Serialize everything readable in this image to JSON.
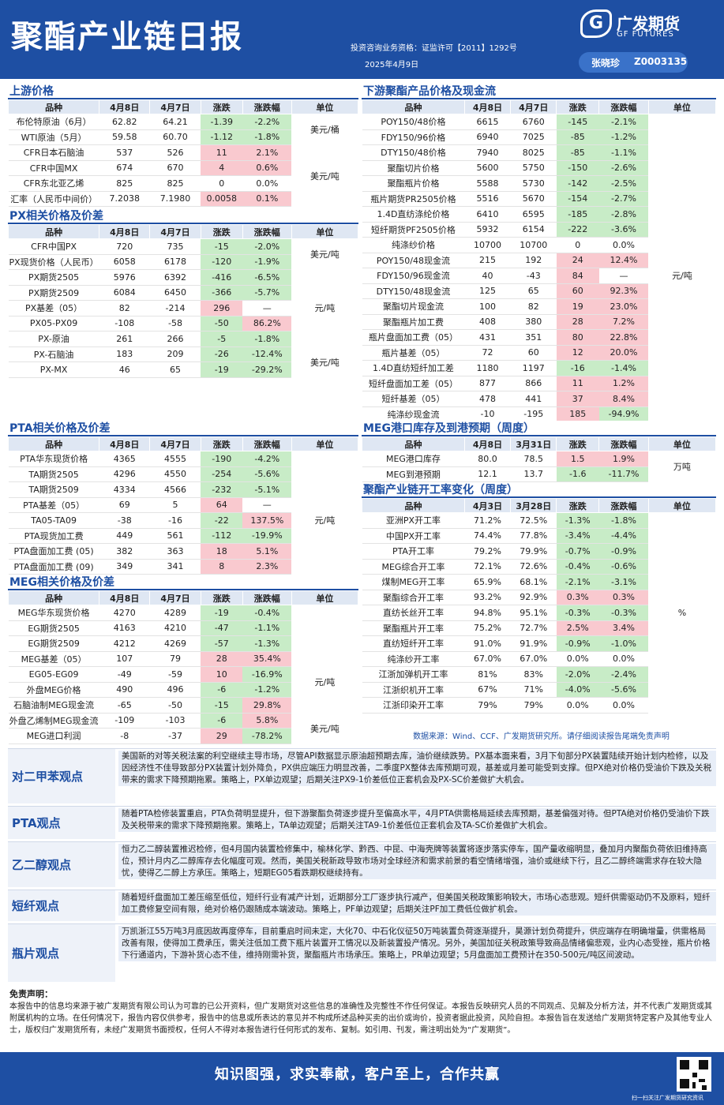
{
  "header": {
    "title": "聚酯产业链日报",
    "qualification": "投资咨询业务资格：证监许可【2011】1292号",
    "date": "2025年4月9日",
    "logo_cn": "广发期货",
    "logo_en": "GF FUTURES",
    "author": "张晓珍",
    "author_id": "Z0003135"
  },
  "sections": {
    "upstream": {
      "title": "上游价格",
      "headers": [
        "品种",
        "4月8日",
        "4月7日",
        "涨跌",
        "涨跌幅",
        "单位"
      ],
      "rows": [
        [
          "布伦特原油（6月）",
          "62.82",
          "64.21",
          "-1.39",
          "-2.2%"
        ],
        [
          "WTI原油（5月）",
          "59.58",
          "60.70",
          "-1.12",
          "-1.8%"
        ],
        [
          "CFR日本石脑油",
          "537",
          "526",
          "11",
          "2.1%"
        ],
        [
          "CFR中国MX",
          "674",
          "670",
          "4",
          "0.6%"
        ],
        [
          "CFR东北亚乙烯",
          "825",
          "825",
          "0",
          "0.0%"
        ],
        [
          "汇率（人民币中间价）",
          "7.2038",
          "7.1980",
          "0.0058",
          "0.1%"
        ]
      ],
      "units": [
        "美元/桶",
        "美元/吨"
      ]
    },
    "px": {
      "title": "PX相关价格及价差",
      "headers": [
        "品种",
        "4月8日",
        "4月7日",
        "涨跌",
        "涨跌幅",
        "单位"
      ],
      "rows": [
        [
          "CFR中国PX",
          "720",
          "735",
          "-15",
          "-2.0%"
        ],
        [
          "PX现货价格（人民币）",
          "6058",
          "6178",
          "-120",
          "-1.9%"
        ],
        [
          "PX期货2505",
          "5976",
          "6392",
          "-416",
          "-6.5%"
        ],
        [
          "PX期货2509",
          "6084",
          "6450",
          "-366",
          "-5.7%"
        ],
        [
          "PX基差（05）",
          "82",
          "-214",
          "296",
          "—"
        ],
        [
          "PX05-PX09",
          "-108",
          "-58",
          "-50",
          "86.2%"
        ],
        [
          "PX-原油",
          "261",
          "266",
          "-5",
          "-1.8%"
        ],
        [
          "PX-石脑油",
          "183",
          "209",
          "-26",
          "-12.4%"
        ],
        [
          "PX-MX",
          "46",
          "65",
          "-19",
          "-29.2%"
        ]
      ],
      "units": [
        "美元/吨",
        "元/吨",
        "美元/吨"
      ]
    },
    "pta": {
      "title": "PTA相关价格及价差",
      "headers": [
        "品种",
        "4月8日",
        "4月7日",
        "涨跌",
        "涨跌幅",
        "单位"
      ],
      "rows": [
        [
          "PTA华东现货价格",
          "4365",
          "4555",
          "-190",
          "-4.2%"
        ],
        [
          "TA期货2505",
          "4296",
          "4550",
          "-254",
          "-5.6%"
        ],
        [
          "TA期货2509",
          "4334",
          "4566",
          "-232",
          "-5.1%"
        ],
        [
          "PTA基差（05）",
          "69",
          "5",
          "64",
          "—"
        ],
        [
          "TA05-TA09",
          "-38",
          "-16",
          "-22",
          "137.5%"
        ],
        [
          "PTA现货加工费",
          "449",
          "561",
          "-112",
          "-19.9%"
        ],
        [
          "PTA盘面加工费 (05)",
          "382",
          "363",
          "18",
          "5.1%"
        ],
        [
          "PTA盘面加工费 (09)",
          "349",
          "341",
          "8",
          "2.3%"
        ]
      ],
      "units": [
        "元/吨"
      ]
    },
    "meg": {
      "title": "MEG相关价格及价差",
      "headers": [
        "品种",
        "4月8日",
        "4月7日",
        "涨跌",
        "涨跌幅",
        "单位"
      ],
      "rows": [
        [
          "MEG华东现货价格",
          "4270",
          "4289",
          "-19",
          "-0.4%"
        ],
        [
          "EG期货2505",
          "4163",
          "4210",
          "-47",
          "-1.1%"
        ],
        [
          "EG期货2509",
          "4212",
          "4269",
          "-57",
          "-1.3%"
        ],
        [
          "MEG基差（05）",
          "107",
          "79",
          "28",
          "35.4%"
        ],
        [
          "EG05-EG09",
          "-49",
          "-59",
          "10",
          "-16.9%"
        ],
        [
          "外盘MEG价格",
          "490",
          "496",
          "-6",
          "-1.2%"
        ],
        [
          "石脑油制MEG现金流",
          "-65",
          "-50",
          "-15",
          "29.8%"
        ],
        [
          "外盘乙烯制MEG现金流",
          "-109",
          "-103",
          "-6",
          "5.8%"
        ],
        [
          "MEG进口利润",
          "-8",
          "-37",
          "29",
          "-78.2%"
        ]
      ],
      "units": [
        "元/吨",
        "美元/吨",
        "元/吨"
      ]
    },
    "downstream": {
      "title": "下游聚酯产品价格及现金流",
      "headers": [
        "品种",
        "4月8日",
        "4月7日",
        "涨跌",
        "涨跌幅",
        "单位"
      ],
      "rows": [
        [
          "POY150/48价格",
          "6615",
          "6760",
          "-145",
          "-2.1%"
        ],
        [
          "FDY150/96价格",
          "6940",
          "7025",
          "-85",
          "-1.2%"
        ],
        [
          "DTY150/48价格",
          "7940",
          "8025",
          "-85",
          "-1.1%"
        ],
        [
          "聚酯切片价格",
          "5600",
          "5750",
          "-150",
          "-2.6%"
        ],
        [
          "聚酯瓶片价格",
          "5588",
          "5730",
          "-142",
          "-2.5%"
        ],
        [
          "瓶片期货PR2505价格",
          "5516",
          "5670",
          "-154",
          "-2.7%"
        ],
        [
          "1.4D直纺涤纶价格",
          "6410",
          "6595",
          "-185",
          "-2.8%"
        ],
        [
          "短纤期货PF2505价格",
          "5932",
          "6154",
          "-222",
          "-3.6%"
        ],
        [
          "纯涤纱价格",
          "10700",
          "10700",
          "0",
          "0.0%"
        ],
        [
          "POY150/48现金流",
          "215",
          "192",
          "24",
          "12.4%"
        ],
        [
          "FDY150/96现金流",
          "40",
          "-43",
          "84",
          "—"
        ],
        [
          "DTY150/48现金流",
          "125",
          "65",
          "60",
          "92.3%"
        ],
        [
          "聚酯切片现金流",
          "100",
          "82",
          "19",
          "23.0%"
        ],
        [
          "聚酯瓶片加工费",
          "408",
          "380",
          "28",
          "7.2%"
        ],
        [
          "瓶片盘面加工费（05）",
          "431",
          "351",
          "80",
          "22.8%"
        ],
        [
          "瓶片基差（05）",
          "72",
          "60",
          "12",
          "20.0%"
        ],
        [
          "1.4D直纺短纤加工差",
          "1180",
          "1197",
          "-16",
          "-1.4%"
        ],
        [
          "短纤盘面加工差（05）",
          "877",
          "866",
          "11",
          "1.2%"
        ],
        [
          "短纤基差（05）",
          "478",
          "441",
          "37",
          "8.4%"
        ],
        [
          "纯涤纱现金流",
          "-10",
          "-195",
          "185",
          "-94.9%"
        ]
      ],
      "units": [
        "元/吨"
      ]
    },
    "megport": {
      "title": "MEG港口库存及到港预期（周度）",
      "headers": [
        "品种",
        "4月8日",
        "3月31日",
        "涨跌",
        "涨跌幅",
        "单位"
      ],
      "rows": [
        [
          "MEG港口库存",
          "80.0",
          "78.5",
          "1.5",
          "1.9%"
        ],
        [
          "MEG到港预期",
          "12.1",
          "13.7",
          "-1.6",
          "-11.7%"
        ]
      ],
      "units": [
        "万吨"
      ]
    },
    "oprate": {
      "title": "聚酯产业链开工率变化（周度）",
      "headers": [
        "品种",
        "4月3日",
        "3月28日",
        "涨跌",
        "涨跌幅",
        "单位"
      ],
      "rows": [
        [
          "亚洲PX开工率",
          "71.2%",
          "72.5%",
          "-1.3%",
          "-1.8%"
        ],
        [
          "中国PX开工率",
          "74.4%",
          "77.8%",
          "-3.4%",
          "-4.4%"
        ],
        [
          "PTA开工率",
          "79.2%",
          "79.9%",
          "-0.7%",
          "-0.9%"
        ],
        [
          "MEG综合开工率",
          "72.1%",
          "72.6%",
          "-0.4%",
          "-0.6%"
        ],
        [
          "煤制MEG开工率",
          "65.9%",
          "68.1%",
          "-2.1%",
          "-3.1%"
        ],
        [
          "聚酯综合开工率",
          "93.2%",
          "92.9%",
          "0.3%",
          "0.3%"
        ],
        [
          "直纺长丝开工率",
          "94.8%",
          "95.1%",
          "-0.3%",
          "-0.3%"
        ],
        [
          "聚酯瓶片开工率",
          "75.2%",
          "72.7%",
          "2.5%",
          "3.4%"
        ],
        [
          "直纺短纤开工率",
          "91.0%",
          "91.9%",
          "-0.9%",
          "-1.0%"
        ],
        [
          "纯涤纱开工率",
          "67.0%",
          "67.0%",
          "0.0%",
          "0.0%"
        ],
        [
          "江浙加弹机开工率",
          "81%",
          "83%",
          "-2.0%",
          "-2.4%"
        ],
        [
          "江浙织机开工率",
          "67%",
          "71%",
          "-4.0%",
          "-5.6%"
        ],
        [
          "江浙印染开工率",
          "79%",
          "79%",
          "0.0%",
          "0.0%"
        ]
      ],
      "units": [
        "%"
      ]
    }
  },
  "source": "数据来源：Wind、CCF、广发期货研究所。请仔细阅读报告尾端免责声明",
  "views": [
    {
      "label": "对二甲苯观点",
      "text": "美国新的对等关税法案的利空继续主导市场，尽管API数据显示原油超预期去库，油价继续跌势。PX基本面来看，3月下旬部分PX装置陆续开始计划内检修，以及因经济性不佳导致部分PX装置计划外降负，PX供应端压力明显改善，二季度PX整体去库预期可观，基差或月差可能受到支撑。但PX绝对价格仍受油价下跌及关税带来的需求下降预期拖累。策略上，PX单边观望；后期关注PX9-1价差低位正套机会及PX-SC价差做扩大机会。"
    },
    {
      "label": "PTA观点",
      "text": "随着PTA检修装置重启，PTA负荷明显提升，但下游聚酯负荷逐步提升至偏高水平，4月PTA供需格局延续去库预期，基差偏强对待。但PTA绝对价格仍受油价下跌及关税带来的需求下降预期拖累。策略上，TA单边观望；后期关注TA9-1价差低位正套机会及TA-SC价差做扩大机会。"
    },
    {
      "label": "乙二醇观点",
      "text": "恒力乙二醇装置推迟检修，但4月国内装置检修集中，榆林化学、黔西、中昆、中海壳牌等装置将逐步落实停车，国产量收缩明显，叠加月内聚酯负荷依旧维持高位，预计月内乙二醇库存去化幅度可观。然而，美国关税新政导致市场对全球经济和需求前景的看空情绪增强，油价或继续下行，且乙二醇终端需求存在较大隐忧，使得乙二醇上方承压。策略上，短期EG05看跌期权继续持有。"
    },
    {
      "label": "短纤观点",
      "text": "随着短纤盘面加工差压缩至低位，短纤行业有减产计划，近期部分工厂逐步执行减产，但美国关税政策影响较大，市场心态悲观。短纤供需驱动仍不及原料，短纤加工费修复空间有限，绝对价格仍跟随成本端波动。策略上，PF单边观望；后期关注PF加工费低位做扩机会。"
    },
    {
      "label": "瓶片观点",
      "text": "万凯浙江55万吨3月底因故再度停车，目前重启时间未定，大化70、中石化仪征50万吨装置负荷逐渐提升，昊源计划负荷提升，供应端存在明确增量，供需格局改善有限，使得加工费承压，需关注低加工费下瓶片装置开工情况以及新装置投产情况。另外，美国加征关税政策导致商品情绪偏悲观，业内心态受挫，瓶片价格下行通道内，下游补货心态不佳，维持刚需补货，聚酯瓶片市场承压。策略上，PR单边观望；5月盘面加工费预计在350-500元/吨区间波动。"
    }
  ],
  "disclaimer": {
    "title": "免责声明：",
    "text": "本报告中的信息均来源于被广发期货有限公司认为可靠的已公开资料，但广发期货对这些信息的准确性及完整性不作任何保证。本报告反映研究人员的不同观点、见解及分析方法，并不代表广发期货或其附属机构的立场。在任何情况下，报告内容仅供参考，报告中的信息或所表达的意见并不构成所述品种买卖的出价或询价，投资者据此投资，风险自担。本报告旨在发送给广发期货特定客户及其他专业人士，版权归广发期货所有，未经广发期货书面授权，任何人不得对本报告进行任何形式的发布、复制。如引用、刊发，需注明出处为“广发期货”。"
  },
  "footer": {
    "slogan": "知识图强，求实奉献，客户至上，合作共赢",
    "qr_caption": "扫一扫关注广发期货研究资讯"
  }
}
